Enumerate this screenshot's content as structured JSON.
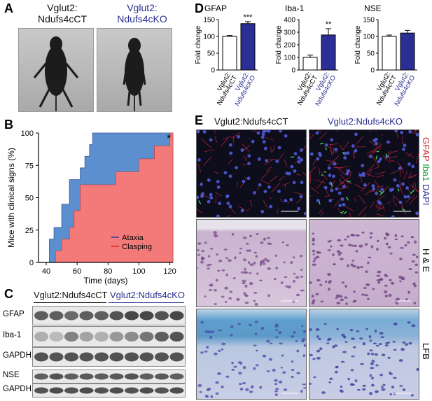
{
  "panels": {
    "A": {
      "label": "A",
      "ct_line1": "Vglut2:",
      "ct_line2": "Ndufs4cCT",
      "ko_line1": "Vglut2:",
      "ko_line2": "Ndufs4cKO"
    },
    "B": {
      "label": "B"
    },
    "C": {
      "label": "C",
      "ct_group": "Vglut2:Ndufs4cCT",
      "ko_group": "Vglut2:Ndufs4cKO",
      "rows": [
        "GFAP",
        "Iba-1",
        "GAPDH",
        "NSE",
        "GAPDH"
      ]
    },
    "D": {
      "label": "D"
    },
    "E": {
      "label": "E",
      "ct_title": "Vglut2:Ndufs4cCT",
      "ko_title": "Vglut2:Ndufs4cKO",
      "stain1": {
        "gfap": "GFAP",
        "iba": "Iba1",
        "dapi": "DAPI"
      },
      "stain2": "H & E",
      "stain3": "LFB"
    }
  },
  "chart_data": [
    {
      "type": "area",
      "panel": "B",
      "xlabel": "Time (days)",
      "ylabel": "Mice with clinical signs (%)",
      "xlim": [
        35,
        122
      ],
      "ylim": [
        0,
        100
      ],
      "xticks": [
        40,
        60,
        80,
        100,
        120
      ],
      "yticks": [
        0,
        25,
        50,
        75,
        100
      ],
      "annotation": "*",
      "legend_position": "bottom-right",
      "series": [
        {
          "name": "Ataxia",
          "color": "#5b8fd0",
          "x": [
            40,
            42,
            45,
            50,
            55,
            60,
            62,
            65,
            68,
            70,
            122
          ],
          "y": [
            0,
            18,
            27,
            45,
            64,
            64,
            73,
            82,
            91,
            100,
            100
          ]
        },
        {
          "name": "Clasping",
          "color": "#f47a7a",
          "x": [
            44,
            46,
            50,
            55,
            58,
            62,
            82,
            85,
            100,
            105,
            110,
            115,
            120,
            122
          ],
          "y": [
            0,
            9,
            18,
            27,
            40,
            60,
            60,
            70,
            80,
            80,
            90,
            90,
            100,
            100
          ]
        }
      ]
    },
    {
      "type": "bar",
      "panel": "D",
      "title": "GFAP",
      "ylabel": "Fold change",
      "categories": [
        "Vglut2: Ndufs4cCT",
        "Vglut2: Ndufs4cKO"
      ],
      "values": [
        100,
        138
      ],
      "errors": [
        3,
        6
      ],
      "ylim": [
        0,
        150
      ],
      "yticks": [
        0,
        50,
        100,
        150
      ],
      "annotations": [
        "",
        "***"
      ]
    },
    {
      "type": "bar",
      "panel": "D",
      "title": "Iba-1",
      "ylabel": "Fold change",
      "categories": [
        "Vglut2: Ndufs4cCT",
        "Vglut2: Ndufs4cKO"
      ],
      "values": [
        100,
        278
      ],
      "errors": [
        18,
        50
      ],
      "ylim": [
        0,
        400
      ],
      "yticks": [
        0,
        100,
        200,
        300,
        400
      ],
      "annotations": [
        "",
        "**"
      ]
    },
    {
      "type": "bar",
      "panel": "D",
      "title": "NSE",
      "ylabel": "Fold change",
      "categories": [
        "Vglut2: Ndufs4cCT",
        "Vglut2: Ndufs4cKO"
      ],
      "values": [
        100,
        110
      ],
      "errors": [
        4,
        8
      ],
      "ylim": [
        0,
        150
      ],
      "yticks": [
        0,
        50,
        100,
        150
      ],
      "annotations": [
        "",
        ""
      ]
    }
  ]
}
